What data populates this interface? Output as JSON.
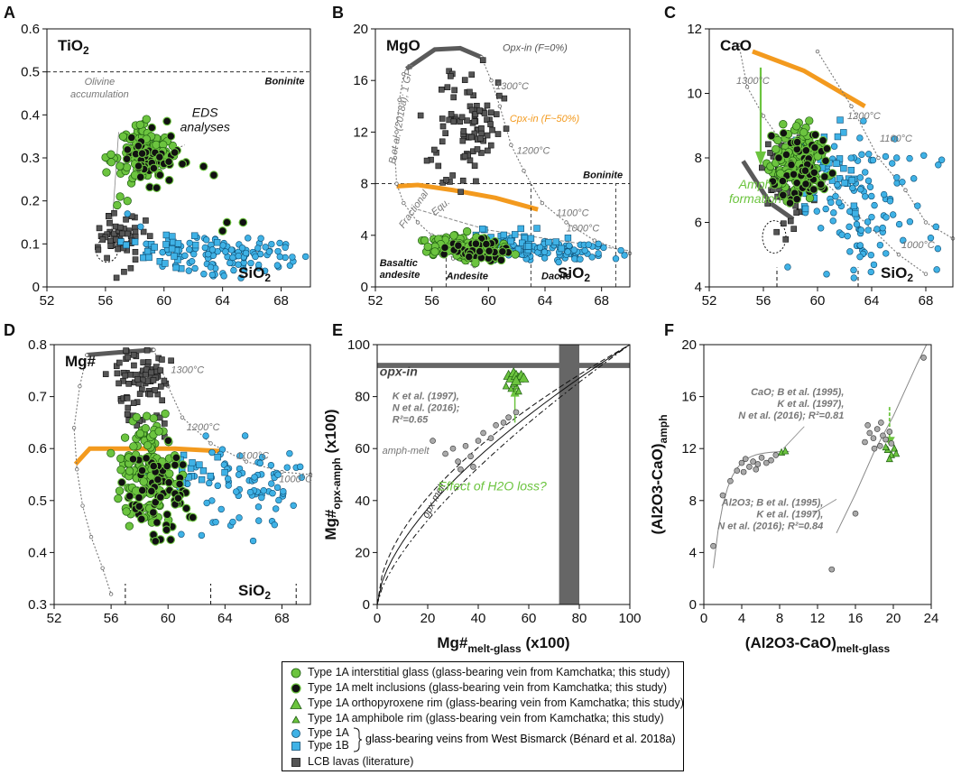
{
  "colors": {
    "green": "#6cc43f",
    "black_fill": "#111111",
    "blue": "#3fb2e6",
    "lcb": "#555555",
    "orange": "#f39a1e",
    "gray_line": "#777777",
    "dark_gray": "#5a5a5a"
  },
  "legend": {
    "items": [
      {
        "symbol": "green-circle",
        "text": "Type 1A interstitial glass (glass-bearing vein from Kamchatka; this study)"
      },
      {
        "symbol": "black-circle",
        "text": "Type 1A melt inclusions (glass-bearing vein from Kamchatka; this study)"
      },
      {
        "symbol": "green-triangle-large",
        "text": "Type 1A orthopyroxene rim (glass-bearing vein from Kamchatka; this study)"
      },
      {
        "symbol": "green-triangle-small",
        "text": "Type 1A amphibole rim (glass-bearing vein from Kamchatka; this study)"
      },
      {
        "symbol": "blue-circle",
        "text": "Type 1A"
      },
      {
        "symbol": "blue-square",
        "text": "Type 1B"
      },
      {
        "symbol": "gray-square",
        "text": "LCB lavas (literature)"
      }
    ],
    "bracket_text": "glass-bearing veins from West Bismarck (Bénard et al. 2018a)"
  },
  "chart_data": [
    {
      "panel": "A",
      "type": "scatter",
      "ylabel_inset": "TiO2",
      "xlabel_inset": "SiO2",
      "xlim": [
        52,
        70
      ],
      "ylim": [
        0,
        0.6
      ],
      "xticks": [
        52,
        56,
        60,
        64,
        68
      ],
      "yticks": [
        0,
        0.1,
        0.2,
        0.3,
        0.4,
        0.5,
        0.6
      ],
      "annotations": [
        "Boninite",
        "Olivine accumulation",
        "EDS analyses"
      ],
      "reference_lines": [
        {
          "label": "Boninite",
          "y": 0.5
        }
      ],
      "series": [
        {
          "name": "interstitial glass",
          "center": [
            58.5,
            0.31
          ],
          "spread": [
            1.0,
            0.03
          ],
          "count": 120,
          "extra": [
            [
              56.4,
              0.29
            ],
            [
              57.2,
              0.35
            ],
            [
              58.8,
              0.39
            ],
            [
              57.0,
              0.21
            ],
            [
              56.8,
              0.19
            ],
            [
              57.5,
              0.2
            ]
          ]
        },
        {
          "name": "melt inclusions",
          "center": [
            59.2,
            0.3
          ],
          "spread": [
            0.9,
            0.03
          ],
          "count": 55,
          "extra": [
            [
              62.7,
              0.28
            ],
            [
              63.4,
              0.26
            ],
            [
              64.3,
              0.15
            ],
            [
              65.4,
              0.15
            ],
            [
              64.0,
              0.13
            ]
          ]
        },
        {
          "name": "West Bismarck 1A",
          "center": [
            64.5,
            0.07
          ],
          "spread": [
            2.2,
            0.02
          ],
          "count": 110,
          "extra": [
            [
              57.5,
              0.17
            ],
            [
              58.4,
              0.14
            ]
          ]
        },
        {
          "name": "West Bismarck 1B",
          "center": [
            60.0,
            0.09
          ],
          "spread": [
            1.3,
            0.02
          ],
          "count": 28
        },
        {
          "name": "LCB lavas",
          "center": [
            57.0,
            0.11
          ],
          "spread": [
            0.7,
            0.03
          ],
          "count": 55
        }
      ]
    },
    {
      "panel": "B",
      "type": "scatter",
      "ylabel_inset": "MgO",
      "xlabel_inset": "SiO2",
      "xlim": [
        52,
        70
      ],
      "ylim": [
        0,
        20
      ],
      "xticks": [
        52,
        56,
        60,
        64,
        68
      ],
      "yticks": [
        0,
        4,
        8,
        12,
        16,
        20
      ],
      "annotations": [
        "Opx-in (F=0%)",
        "Cpx-in (F~50%)",
        "1300°C",
        "1200°C",
        "1100°C",
        "1000°C",
        "Boninite",
        "B et al. (2018a); 1 GPa",
        "Fractional",
        "Equ.",
        "Basaltic andesite",
        "Andesite",
        "Dacite"
      ],
      "series": [
        {
          "name": "LCB lavas",
          "center": [
            58.5,
            12.5
          ],
          "spread": [
            1.2,
            2.5
          ],
          "count": 90
        },
        {
          "name": "interstitial glass",
          "center": [
            58.5,
            3.0
          ],
          "spread": [
            1.3,
            0.5
          ],
          "count": 130
        },
        {
          "name": "melt inclusions",
          "center": [
            59.0,
            2.9
          ],
          "spread": [
            1.2,
            0.45
          ],
          "count": 60
        },
        {
          "name": "West Bismarck 1A",
          "center": [
            64.5,
            2.8
          ],
          "spread": [
            2.5,
            0.4
          ],
          "count": 90
        },
        {
          "name": "West Bismarck 1B",
          "center": [
            61.5,
            3.6
          ],
          "spread": [
            1.8,
            0.5
          ],
          "count": 35
        }
      ]
    },
    {
      "panel": "C",
      "type": "scatter",
      "ylabel_inset": "CaO",
      "xlabel_inset": "SiO2",
      "xlim": [
        52,
        70
      ],
      "ylim": [
        4,
        12
      ],
      "xticks": [
        52,
        56,
        60,
        64,
        68
      ],
      "yticks": [
        4,
        6,
        8,
        10,
        12
      ],
      "annotations": [
        "1300°C",
        "1200°C",
        "1100°C",
        "1000°C",
        "Amph formation"
      ],
      "series": [
        {
          "name": "interstitial glass",
          "center": [
            58.5,
            7.9
          ],
          "spread": [
            1.0,
            0.5
          ],
          "count": 140
        },
        {
          "name": "melt inclusions",
          "center": [
            59.0,
            7.7
          ],
          "spread": [
            1.1,
            0.55
          ],
          "count": 65
        },
        {
          "name": "West Bismarck 1A",
          "center": [
            63.5,
            6.5
          ],
          "spread": [
            2.5,
            1.2
          ],
          "count": 110
        },
        {
          "name": "West Bismarck 1B",
          "center": [
            61.2,
            7.6
          ],
          "spread": [
            1.2,
            0.8
          ],
          "count": 30
        },
        {
          "name": "LCB lavas",
          "center": [
            57.8,
            7.4
          ],
          "spread": [
            0.9,
            0.7
          ],
          "count": 60
        }
      ]
    },
    {
      "panel": "D",
      "type": "scatter",
      "ylabel_inset": "Mg#",
      "xlabel_inset": "SiO2",
      "xlim": [
        52,
        70
      ],
      "ylim": [
        0.3,
        0.8
      ],
      "xticks": [
        52,
        56,
        60,
        64,
        68
      ],
      "yticks": [
        0.3,
        0.4,
        0.5,
        0.6,
        0.7,
        0.8
      ],
      "annotations": [
        "1300°C",
        "1200°C",
        "1100°C",
        "1000°C"
      ],
      "series": [
        {
          "name": "LCB lavas",
          "center": [
            58.0,
            0.73
          ],
          "spread": [
            1.0,
            0.04
          ],
          "count": 80
        },
        {
          "name": "interstitial glass",
          "center": [
            58.6,
            0.56
          ],
          "spread": [
            1.0,
            0.05
          ],
          "count": 140
        },
        {
          "name": "melt inclusions",
          "center": [
            59.5,
            0.52
          ],
          "spread": [
            1.2,
            0.05
          ],
          "count": 70
        },
        {
          "name": "West Bismarck 1A",
          "center": [
            65.5,
            0.53
          ],
          "spread": [
            2.3,
            0.04
          ],
          "count": 80
        },
        {
          "name": "West Bismarck 1B",
          "center": [
            61.5,
            0.56
          ],
          "spread": [
            1.3,
            0.02
          ],
          "count": 20
        }
      ]
    },
    {
      "panel": "E",
      "type": "scatter",
      "ylabel": "Mg#opx-amph (x100)",
      "xlabel": "Mg#melt-glass (x100)",
      "xlim": [
        0,
        100
      ],
      "ylim": [
        0,
        100
      ],
      "xticks": [
        0,
        20,
        40,
        60,
        80,
        100
      ],
      "yticks": [
        0,
        20,
        40,
        60,
        80,
        100
      ],
      "annotations": [
        "opx-in",
        "K et al. (1997), N et al. (2016); R²=0.65",
        "amph-melt",
        "opx-melt",
        "Effect of H2O loss?"
      ],
      "series": [
        {
          "name": "orthopyroxene rim",
          "points": [
            [
              52,
              88
            ],
            [
              53,
              87
            ],
            [
              54,
              89
            ],
            [
              55,
              88
            ],
            [
              56,
              87
            ],
            [
              57,
              88
            ],
            [
              58,
              87
            ],
            [
              55,
              86
            ]
          ]
        },
        {
          "name": "amphibole rim",
          "points": [
            [
              51,
              84
            ],
            [
              53,
              83
            ],
            [
              55,
              84
            ],
            [
              56,
              82
            ],
            [
              54,
              85
            ]
          ]
        },
        {
          "name": "literature amph-melt",
          "points": [
            [
              22,
              63
            ],
            [
              27,
              58
            ],
            [
              30,
              60
            ],
            [
              32,
              55
            ],
            [
              35,
              61
            ],
            [
              37,
              57
            ],
            [
              40,
              63
            ],
            [
              42,
              66
            ],
            [
              45,
              64
            ],
            [
              47,
              69
            ],
            [
              50,
              70
            ],
            [
              52,
              72
            ],
            [
              55,
              74
            ],
            [
              33,
              52
            ],
            [
              38,
              53
            ]
          ]
        }
      ]
    },
    {
      "panel": "F",
      "type": "scatter",
      "ylabel": "(Al2O3-CaO)amph",
      "xlabel": "(Al2O3-CaO)melt-glass",
      "xlim": [
        0,
        24
      ],
      "ylim": [
        0,
        20
      ],
      "xticks": [
        0,
        4,
        8,
        12,
        16,
        20,
        24
      ],
      "yticks": [
        0,
        4,
        8,
        12,
        16,
        20
      ],
      "annotations": [
        "CaO; B et al. (1995), K et al. (1997), N et al. (2016); R²=0.81",
        "Al2O3; B et al. (1995), K et al. (1997), N et al. (2016); R²=0.84"
      ],
      "series": [
        {
          "name": "amphibole rim",
          "points": [
            [
              19.4,
              11.9
            ],
            [
              19.8,
              11.5
            ],
            [
              20.1,
              12.0
            ],
            [
              19.6,
              11.2
            ],
            [
              20.3,
              11.6
            ],
            [
              19.2,
              12.1
            ],
            [
              8.2,
              11.7
            ],
            [
              8.6,
              11.8
            ]
          ]
        },
        {
          "name": "literature",
          "points": [
            [
              1.0,
              4.5
            ],
            [
              2.0,
              8.4
            ],
            [
              2.8,
              9.5
            ],
            [
              3.5,
              10.3
            ],
            [
              4.0,
              10.9
            ],
            [
              4.4,
              11.2
            ],
            [
              4.8,
              10.6
            ],
            [
              5.2,
              11.0
            ],
            [
              5.7,
              10.8
            ],
            [
              6.1,
              11.3
            ],
            [
              6.6,
              10.9
            ],
            [
              7.1,
              11.1
            ],
            [
              7.6,
              11.5
            ],
            [
              4.2,
              10.2
            ],
            [
              5.5,
              10.4
            ],
            [
              13.5,
              2.7
            ],
            [
              16.0,
              7.0
            ],
            [
              17.0,
              12.5
            ],
            [
              17.5,
              13.2
            ],
            [
              17.9,
              12.8
            ],
            [
              18.3,
              13.5
            ],
            [
              18.6,
              12.2
            ],
            [
              18.9,
              13.0
            ],
            [
              19.2,
              12.7
            ],
            [
              19.6,
              13.3
            ],
            [
              19.8,
              12.4
            ],
            [
              18.0,
              12.0
            ],
            [
              23.2,
              19.0
            ],
            [
              17.3,
              13.8
            ],
            [
              18.7,
              14.0
            ]
          ]
        }
      ]
    }
  ]
}
